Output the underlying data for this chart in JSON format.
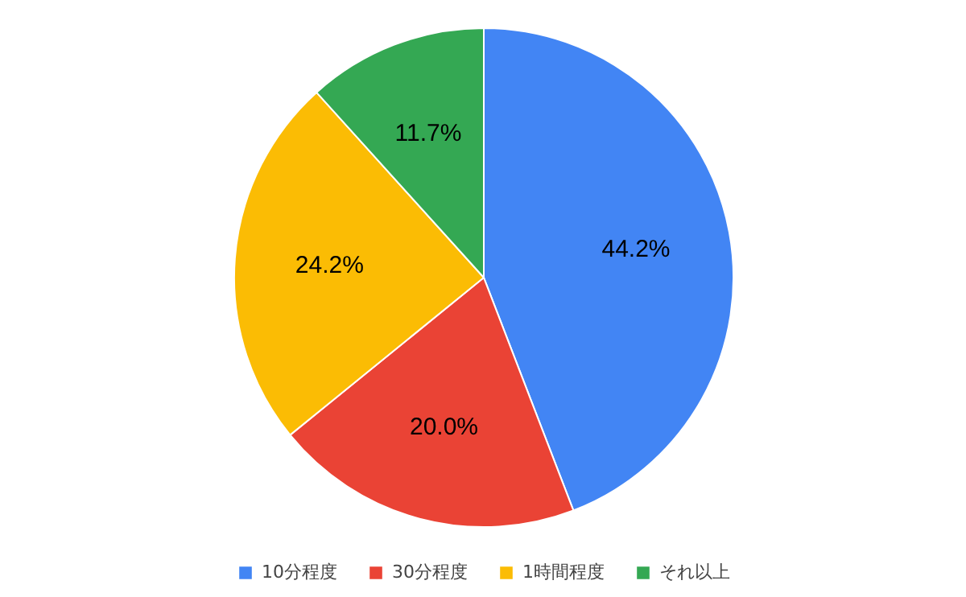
{
  "chart_data": {
    "type": "pie",
    "categories": [
      "10分程度",
      "30分程度",
      "1時間程度",
      "それ以上"
    ],
    "values": [
      44.2,
      20.0,
      24.2,
      11.7
    ],
    "colors": [
      "#4285f4",
      "#ea4335",
      "#fbbc04",
      "#34a853"
    ],
    "value_labels": [
      "44.2%",
      "20.0%",
      "24.2%",
      "11.7%"
    ],
    "legend": "bottom"
  }
}
